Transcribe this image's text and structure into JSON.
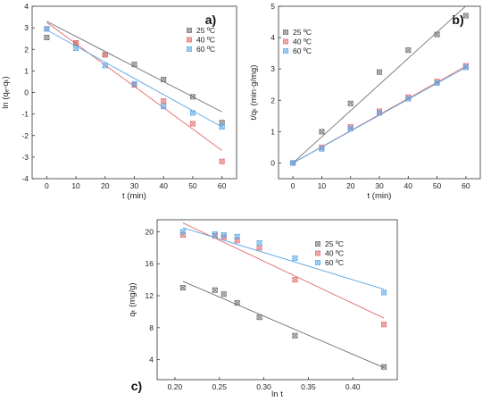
{
  "chart_data": [
    {
      "type": "scatter",
      "panel_label": "a)",
      "xlabel": "t (min)",
      "ylabel": "ln (qₑ-qₜ)",
      "xlim": [
        -5,
        65
      ],
      "ylim": [
        -4,
        4
      ],
      "xticks": [
        0,
        10,
        20,
        30,
        40,
        50,
        60
      ],
      "yticks": [
        -4,
        -3,
        -2,
        -1,
        0,
        1,
        2,
        3,
        4
      ],
      "legend_position": "top-right",
      "x": [
        0,
        10,
        20,
        30,
        40,
        50,
        60
      ],
      "series": [
        {
          "name": "25 ºC",
          "color": "#707070",
          "values": [
            2.55,
            2.3,
            1.75,
            1.3,
            0.6,
            -0.2,
            -1.4
          ],
          "fit": [
            3.3,
            -0.07
          ]
        },
        {
          "name": "40 ºC",
          "color": "#e36a6a",
          "values": [
            2.95,
            2.3,
            1.75,
            0.35,
            -0.4,
            -1.45,
            -3.2
          ],
          "fit": [
            3.25,
            -0.099
          ]
        },
        {
          "name": "60 ºC",
          "color": "#5aa8e6",
          "values": [
            2.95,
            2.05,
            1.25,
            0.4,
            -0.65,
            -0.95,
            -1.6
          ],
          "fit": [
            2.9,
            -0.075
          ]
        }
      ]
    },
    {
      "type": "scatter",
      "panel_label": "b)",
      "xlabel": "t (min)",
      "ylabel": "t/qₜ (min·g/mg)",
      "xlim": [
        -5,
        65
      ],
      "ylim": [
        -0.5,
        5
      ],
      "xticks": [
        0,
        10,
        20,
        30,
        40,
        50,
        60
      ],
      "yticks": [
        0,
        1,
        2,
        3,
        4,
        5
      ],
      "legend_position": "top-left",
      "x": [
        0,
        10,
        20,
        30,
        40,
        50,
        60
      ],
      "series": [
        {
          "name": "25 ºC",
          "color": "#707070",
          "values": [
            0,
            1.0,
            1.9,
            2.9,
            3.6,
            4.1,
            4.7
          ],
          "fit": [
            0,
            0.0835
          ]
        },
        {
          "name": "40 ºC",
          "color": "#e36a6a",
          "values": [
            0,
            0.5,
            1.15,
            1.65,
            2.1,
            2.6,
            3.1
          ],
          "fit": [
            0,
            0.0515
          ]
        },
        {
          "name": "60 ºC",
          "color": "#5aa8e6",
          "values": [
            0,
            0.45,
            1.1,
            1.6,
            2.05,
            2.55,
            3.05
          ],
          "fit": [
            0,
            0.0508
          ]
        }
      ]
    },
    {
      "type": "scatter",
      "panel_label": "c)",
      "xlabel": "ln t",
      "ylabel": "qₜ (mg/g)",
      "xlim": [
        0.18,
        0.45
      ],
      "ylim": [
        1.5,
        21.5
      ],
      "xticks": [
        0.2,
        0.25,
        0.3,
        0.35,
        0.4
      ],
      "xtick_labels": [
        "0.20",
        "0.25",
        "0.30",
        "0.35",
        "0.40"
      ],
      "yticks": [
        4,
        8,
        12,
        16,
        20
      ],
      "legend_position": "top-right",
      "series": [
        {
          "name": "25 ºC",
          "color": "#707070",
          "x": [
            0.209,
            0.245,
            0.255,
            0.27,
            0.295,
            0.335,
            0.435
          ],
          "values": [
            13.0,
            12.7,
            12.2,
            11.1,
            9.3,
            7.0,
            3.1
          ],
          "fit": [
            [
              0.209,
              13.8
            ],
            [
              0.435,
              3.0
            ]
          ]
        },
        {
          "name": "40 ºC",
          "color": "#e36a6a",
          "x": [
            0.209,
            0.245,
            0.255,
            0.27,
            0.295,
            0.335,
            0.435
          ],
          "values": [
            19.6,
            19.5,
            19.3,
            18.9,
            18.0,
            14.0,
            8.4
          ],
          "fit": [
            [
              0.209,
              21.1
            ],
            [
              0.435,
              9.2
            ]
          ]
        },
        {
          "name": "60 ºC",
          "color": "#5aa8e6",
          "x": [
            0.209,
            0.245,
            0.255,
            0.27,
            0.295,
            0.335,
            0.435
          ],
          "values": [
            20.0,
            19.7,
            19.6,
            19.4,
            18.6,
            16.7,
            12.4
          ],
          "fit": [
            [
              0.209,
              20.5
            ],
            [
              0.435,
              12.8
            ]
          ]
        }
      ]
    }
  ]
}
